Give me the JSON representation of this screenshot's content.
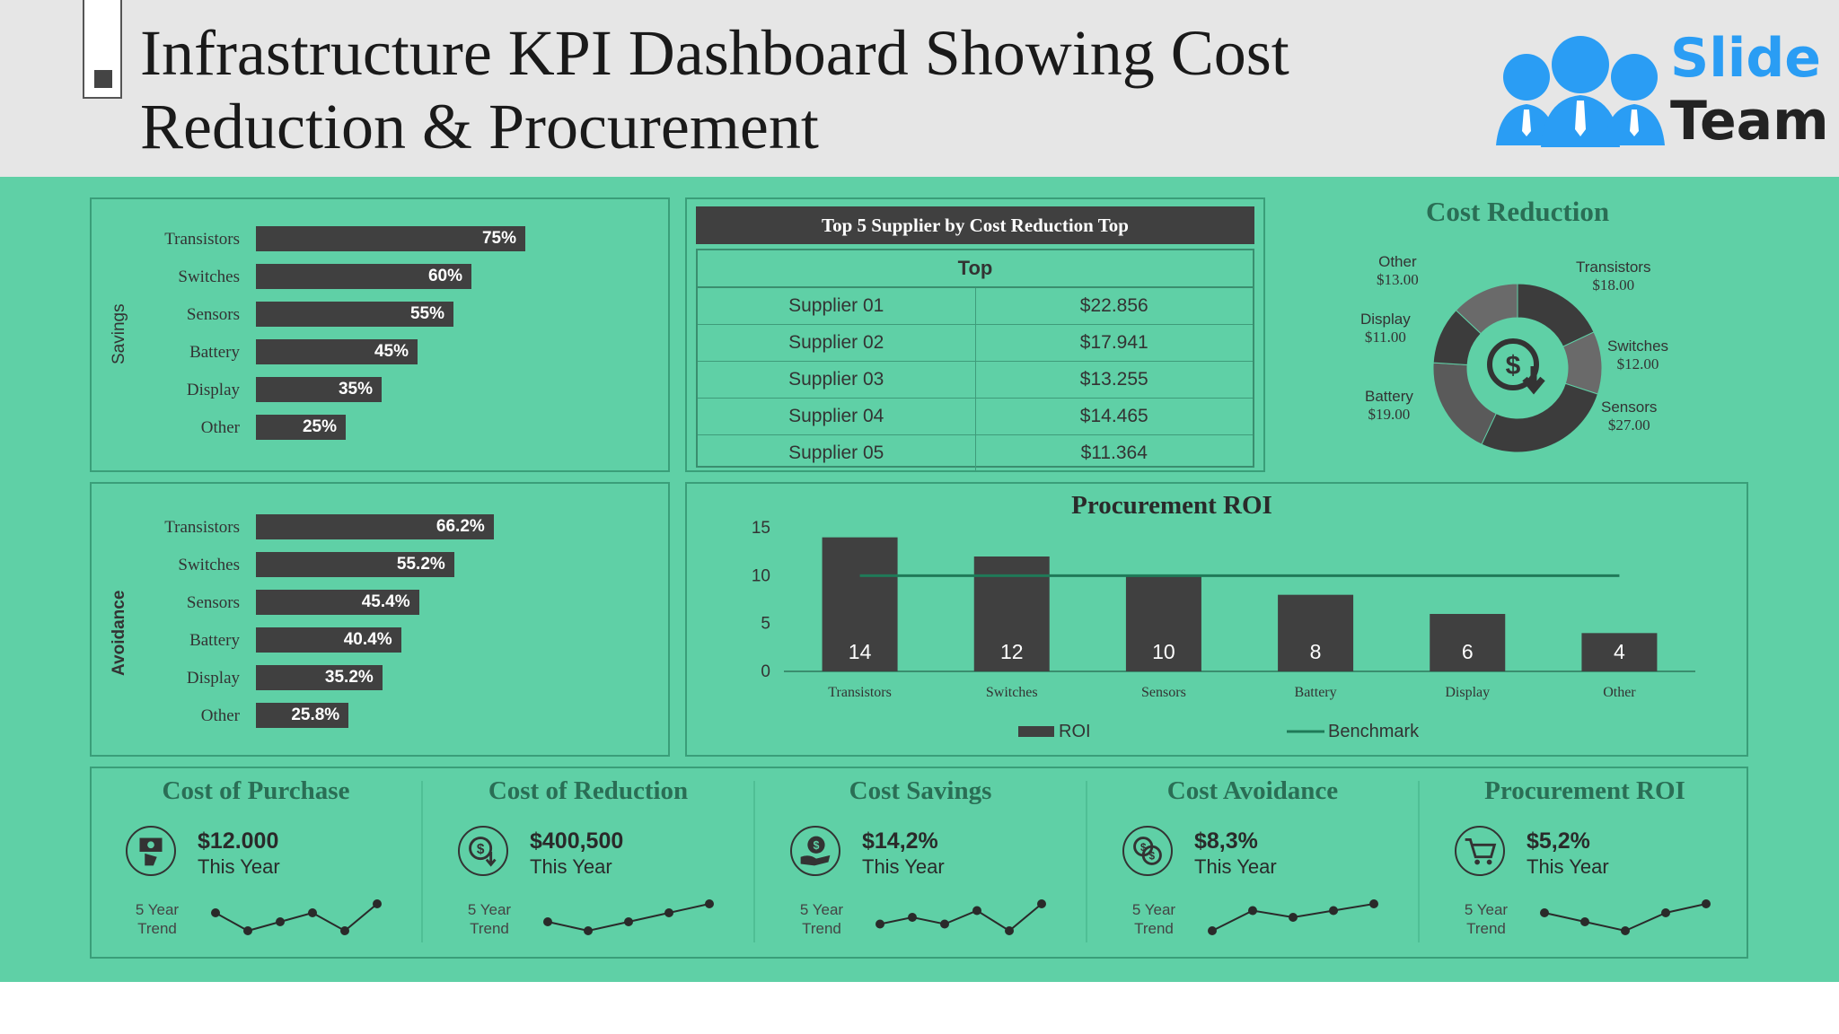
{
  "header": {
    "title": "Infrastructure KPI Dashboard Showing Cost Reduction & Procurement"
  },
  "logo": {
    "word1": "Slide",
    "word2": "Team"
  },
  "savings": {
    "axis_title": "Savings",
    "items": [
      {
        "label": "Transistors",
        "pct": 75,
        "text": "75%"
      },
      {
        "label": "Switches",
        "pct": 60,
        "text": "60%"
      },
      {
        "label": "Sensors",
        "pct": 55,
        "text": "55%"
      },
      {
        "label": "Battery",
        "pct": 45,
        "text": "45%"
      },
      {
        "label": "Display",
        "pct": 35,
        "text": "35%"
      },
      {
        "label": "Other",
        "pct": 25,
        "text": "25%"
      }
    ]
  },
  "avoidance": {
    "axis_title": "Avoidance",
    "items": [
      {
        "label": "Transistors",
        "pct": 66.2,
        "text": "66.2%"
      },
      {
        "label": "Switches",
        "pct": 55.2,
        "text": "55.2%"
      },
      {
        "label": "Sensors",
        "pct": 45.4,
        "text": "45.4%"
      },
      {
        "label": "Battery",
        "pct": 40.4,
        "text": "40.4%"
      },
      {
        "label": "Display",
        "pct": 35.2,
        "text": "35.2%"
      },
      {
        "label": "Other",
        "pct": 25.8,
        "text": "25.8%"
      }
    ]
  },
  "suppliers": {
    "title": "Top 5 Supplier by Cost Reduction Top",
    "subheader": "Top",
    "rows": [
      {
        "name": "Supplier 01",
        "value": "$22.856"
      },
      {
        "name": "Supplier 02",
        "value": "$17.941"
      },
      {
        "name": "Supplier 03",
        "value": "$13.255"
      },
      {
        "name": "Supplier 04",
        "value": "$14.465"
      },
      {
        "name": "Supplier 05",
        "value": "$11.364"
      }
    ]
  },
  "cost_reduction": {
    "title": "Cost Reduction",
    "segments": [
      {
        "name": "Transistors",
        "value": "$18.00"
      },
      {
        "name": "Switches",
        "value": "$12.00"
      },
      {
        "name": "Sensors",
        "value": "$27.00"
      },
      {
        "name": "Battery",
        "value": "$19.00"
      },
      {
        "name": "Display",
        "value": "$11.00"
      },
      {
        "name": "Other",
        "value": "$13.00"
      }
    ]
  },
  "chart_data": {
    "type": "bar",
    "title": "Procurement ROI",
    "categories": [
      "Transistors",
      "Switches",
      "Sensors",
      "Battery",
      "Display",
      "Other"
    ],
    "series": [
      {
        "name": "ROI",
        "values": [
          14,
          12,
          10,
          8,
          6,
          4
        ]
      },
      {
        "name": "Benchmark",
        "values": [
          10,
          10,
          10,
          10,
          10,
          10
        ]
      }
    ],
    "yticks": [
      "15",
      "10",
      "5",
      "0"
    ],
    "ylim": [
      0,
      15
    ],
    "legend": "bottom"
  },
  "kpis": [
    {
      "title": "Cost of Purchase",
      "value": "$12.000",
      "sub": "This Year",
      "trend_label": [
        "5 Year",
        "Trend"
      ],
      "trend": [
        3,
        1,
        2,
        3,
        1,
        4
      ],
      "icon": "money-hand-icon"
    },
    {
      "title": "Cost of Reduction",
      "value": "$400,500",
      "sub": "This Year",
      "trend_label": [
        "5 Year",
        "Trend"
      ],
      "trend": [
        2,
        1,
        2,
        3,
        4
      ],
      "icon": "dollar-down-icon"
    },
    {
      "title": "Cost Savings",
      "value": "$14,2%",
      "sub": "This Year",
      "trend_label": [
        "5 Year",
        "Trend"
      ],
      "trend": [
        2,
        3,
        2,
        4,
        1,
        5
      ],
      "icon": "hand-dollar-icon"
    },
    {
      "title": "Cost Avoidance",
      "value": "$8,3%",
      "sub": "This Year",
      "trend_label": [
        "5 Year",
        "Trend"
      ],
      "trend": [
        1,
        4,
        3,
        4,
        5
      ],
      "icon": "coins-icon"
    },
    {
      "title": "Procurement ROI",
      "value": "$5,2%",
      "sub": "This Year",
      "trend_label": [
        "5 Year",
        "Trend"
      ],
      "trend": [
        3,
        2,
        1,
        3,
        4
      ],
      "icon": "cart-icon"
    }
  ],
  "colors": {
    "panel_bg": "#5fd0a6",
    "bar": "#404040",
    "accent": "#2a6e55",
    "logo_blue": "#2a9df4"
  }
}
